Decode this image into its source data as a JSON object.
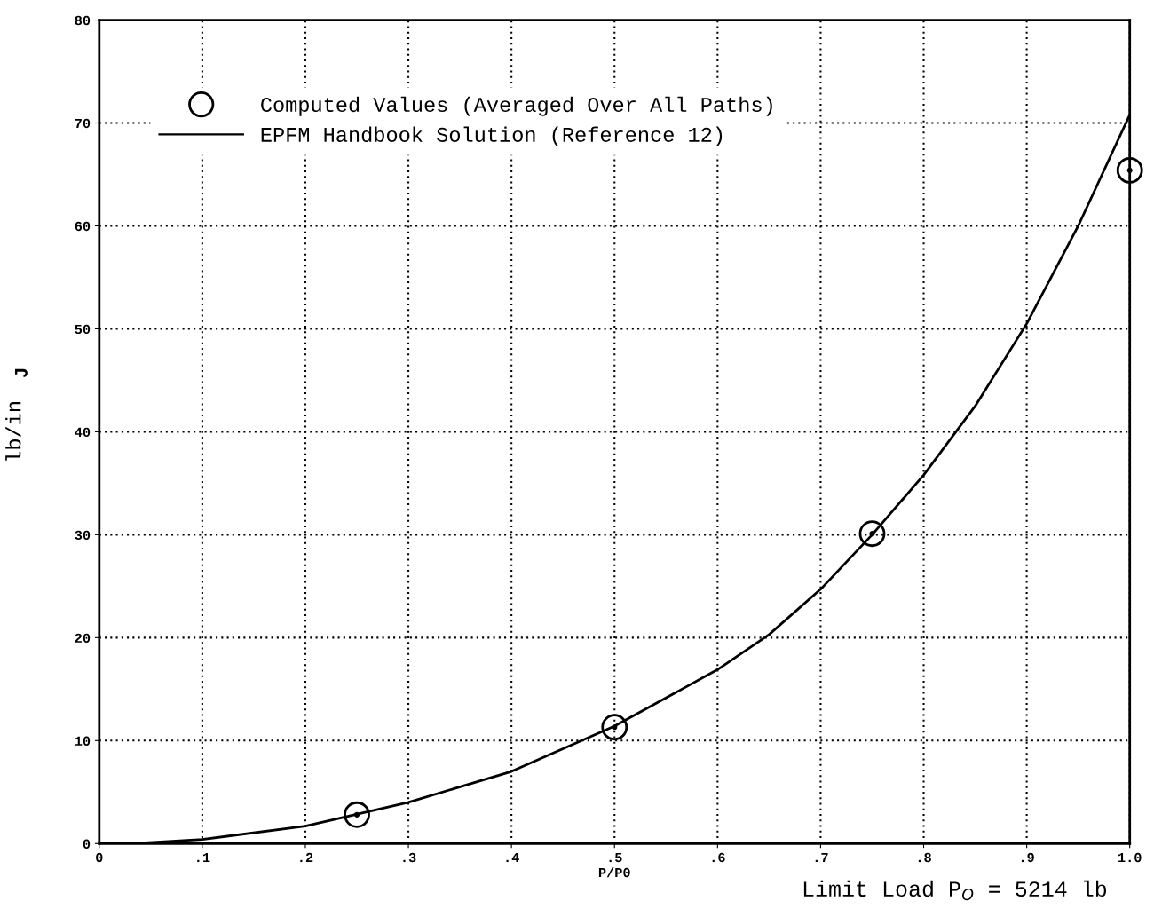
{
  "chart_data": {
    "type": "line",
    "xlabel": "P/P0",
    "ylabel": "lb/in",
    "annotations": [
      "J",
      "Limit Load P$_{O}$ = 5214 lb"
    ],
    "series": [
      {
        "name": "Computed Values (Averaged Over All Paths)",
        "type": "scatter",
        "marker": "circle",
        "color": "#000000",
        "x": [
          0.25,
          0.5,
          0.75,
          1.0
        ],
        "values": [
          2.8,
          11.3,
          30.1,
          65.4
        ]
      },
      {
        "name": "EPFM Handbook Solution (Reference 12)",
        "marker": "none",
        "line_style": "solid",
        "color": "#000000",
        "x": [
          0.03,
          0.1,
          0.2,
          0.3,
          0.4,
          0.5,
          0.6,
          0.65,
          0.7,
          0.75,
          0.8,
          0.85,
          0.9,
          0.95,
          1.0
        ],
        "values": [
          0,
          0.4,
          1.7,
          4,
          7,
          11.4,
          16.9,
          20.3,
          24.7,
          30,
          35.8,
          42.5,
          50.5,
          60,
          70.8
        ]
      }
    ],
    "xlim": [
      0,
      1.0
    ],
    "ylim": [
      0,
      80
    ],
    "xticks": [
      0,
      {
        "value": 0.1,
        "label": ".1"
      },
      {
        "value": 0.2,
        "label": ".2"
      },
      {
        "value": 0.3,
        "label": ".3"
      },
      {
        "value": 0.4,
        "label": ".4"
      },
      {
        "value": 0.5,
        "label": ".5"
      },
      {
        "value": 0.6,
        "label": ".6"
      },
      {
        "value": 0.7,
        "label": ".7"
      },
      {
        "value": 0.8,
        "label": ".8"
      },
      {
        "value": 0.9,
        "label": ".9"
      },
      {
        "value": 1.0,
        "label": "1.0"
      }
    ],
    "yticks": [
      0,
      10,
      20,
      30,
      40,
      50,
      60,
      70,
      80
    ],
    "grid": true,
    "legend": "top left"
  }
}
